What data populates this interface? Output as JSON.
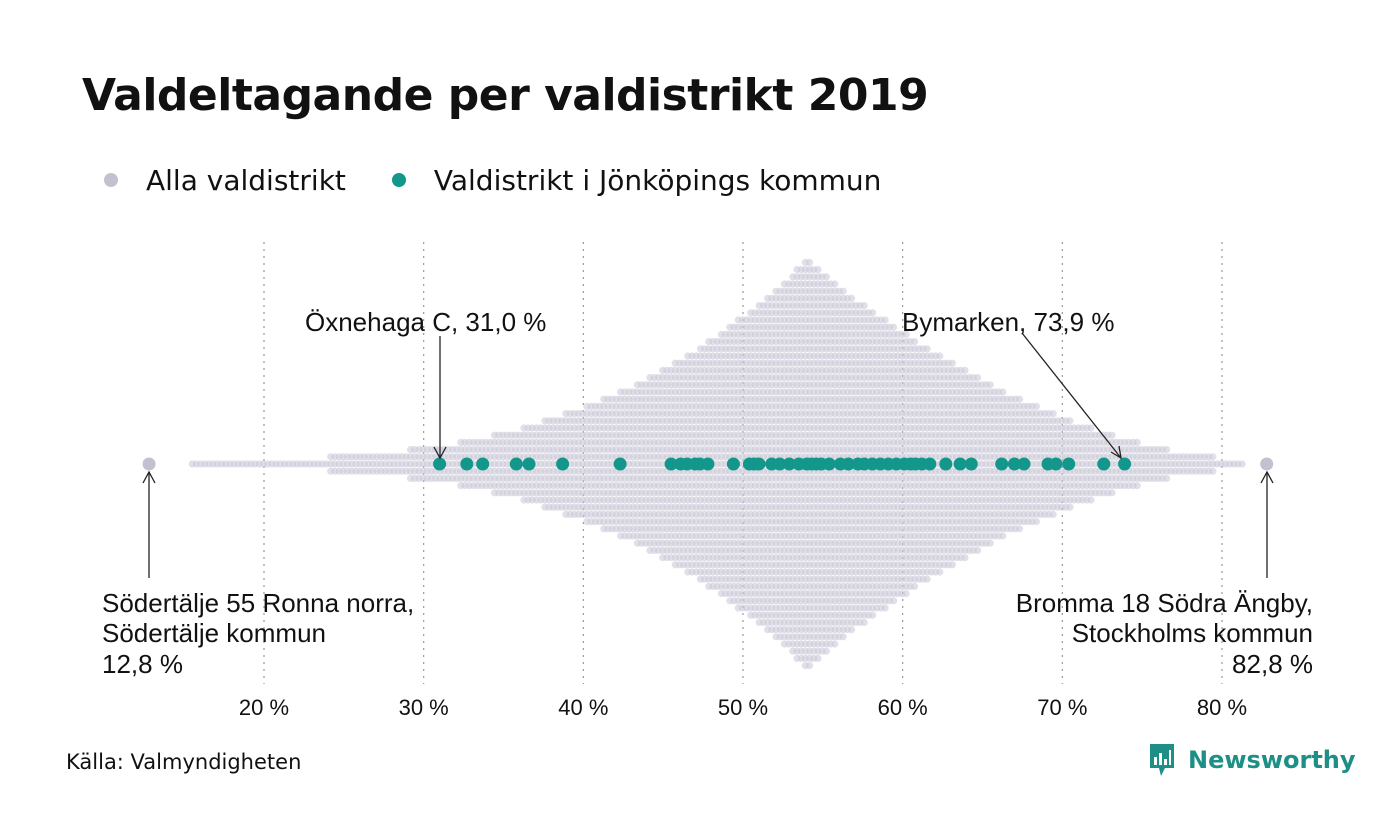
{
  "title": "Valdeltagande per valdistrikt 2019",
  "legend": {
    "all_label": "Alla valdistrikt",
    "highlight_label": "Valdistrikt i Jönköpings kommun"
  },
  "colors": {
    "all": "#c9c6d6",
    "highlight": "#13978b",
    "grid": "#9a9a9a",
    "brand": "#1d8f86"
  },
  "annotations": {
    "low_name_1": "Södertälje 55 Ronna norra,",
    "low_name_2": "Södertälje kommun",
    "low_value": "12,8 %",
    "high_name_1": "Bromma 18 Södra Ängby,",
    "high_name_2": "Stockholms kommun",
    "high_value": "82,8 %",
    "min_jkpg": "Öxnehaga C, 31,0 %",
    "max_jkpg": "Bymarken, 73,9 %"
  },
  "source": "Källa: Valmyndigheten",
  "brand": {
    "name": "Newsworthy",
    "icon": "bar-chart-bubble-icon"
  },
  "chart_data": {
    "type": "scatter",
    "subtype": "beeswarm",
    "title": "Valdeltagande per valdistrikt 2019",
    "xlabel": "",
    "xlim": [
      12,
      84
    ],
    "x_ticks": [
      20,
      30,
      40,
      50,
      60,
      70,
      80
    ],
    "x_tick_labels": [
      "20 %",
      "30 %",
      "40 %",
      "50 %",
      "60 %",
      "70 %",
      "80 %"
    ],
    "grid": "vertical dotted",
    "legend_position": "top-left",
    "series": [
      {
        "name": "Alla valdistrikt",
        "distribution_note": "all districts nationwide",
        "min": 12.8,
        "max": 82.8,
        "mode": 54.0
      },
      {
        "name": "Valdistrikt i Jönköpings kommun",
        "values": [
          31.0,
          32.7,
          33.7,
          35.8,
          36.6,
          38.7,
          42.3,
          45.5,
          46.1,
          46.5,
          47.0,
          47.3,
          47.8,
          49.4,
          50.4,
          50.7,
          51.0,
          51.8,
          52.3,
          52.9,
          53.5,
          54.0,
          54.3,
          54.6,
          54.9,
          55.4,
          56.1,
          56.6,
          57.2,
          57.6,
          58.1,
          58.6,
          59.1,
          59.6,
          60.1,
          60.5,
          60.8,
          61.2,
          61.7,
          62.7,
          63.6,
          64.3,
          66.2,
          67.0,
          67.6,
          69.1,
          69.6,
          70.4,
          72.6,
          73.9
        ]
      }
    ],
    "annotations": [
      {
        "label": "Södertälje 55 Ronna norra, Södertälje kommun 12,8 %",
        "x": 12.8
      },
      {
        "label": "Bromma 18 Södra Ängby, Stockholms kommun 82,8 %",
        "x": 82.8
      },
      {
        "label": "Öxnehaga C, 31,0 %",
        "x": 31.0
      },
      {
        "label": "Bymarken, 73,9 %",
        "x": 73.9
      }
    ]
  }
}
